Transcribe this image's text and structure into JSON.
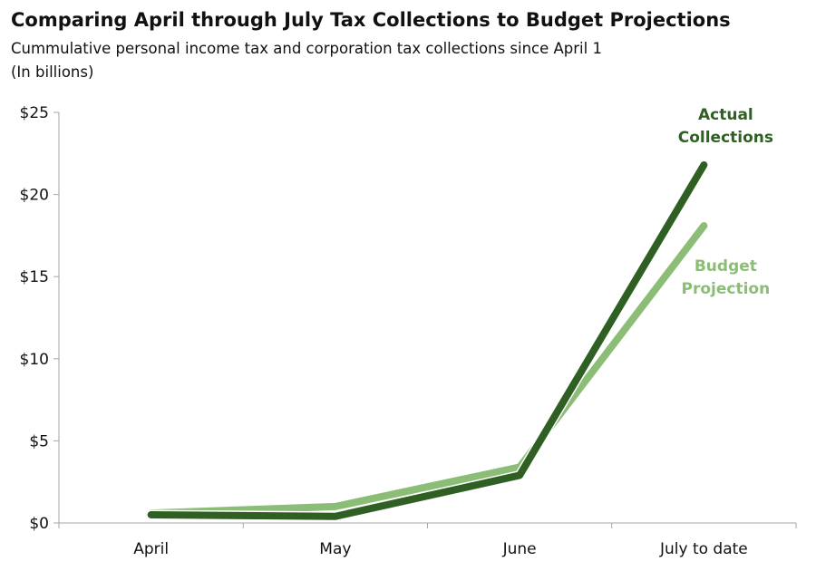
{
  "chart_data": {
    "type": "line",
    "title": "Comparing April through July Tax Collections to Budget Projections",
    "subtitle": "Cummulative personal income tax and corporation tax collections  since April 1",
    "unit_note": "(In billions)",
    "categories": [
      "April",
      "May",
      "June",
      "July to date"
    ],
    "y_ticks": [
      "$0",
      "$5",
      "$10",
      "$15",
      "$20",
      "$25"
    ],
    "ylim": [
      0,
      25
    ],
    "grid": false,
    "series": [
      {
        "name": "Budget Projection",
        "label_lines": [
          "Budget",
          "Projection"
        ],
        "color": "#8cbd77",
        "values": [
          0.6,
          1.0,
          3.4,
          18.1
        ]
      },
      {
        "name": "Actual Collections",
        "label_lines": [
          "Actual",
          "Collections"
        ],
        "color": "#2f5f23",
        "values": [
          0.5,
          0.4,
          2.9,
          21.8
        ]
      }
    ]
  }
}
